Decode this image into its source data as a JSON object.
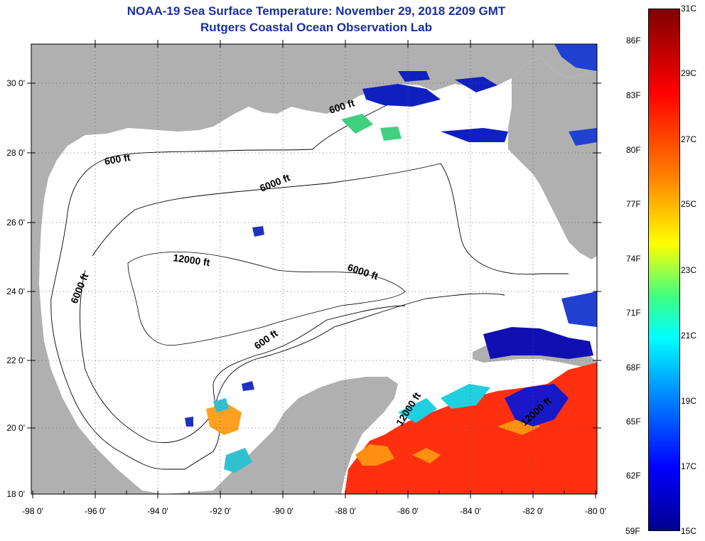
{
  "title": "NOAA-19 Sea Surface Temperature:  November 29, 2018 2209 GMT",
  "subtitle": "Rutgers Coastal Ocean Observation Lab",
  "longitude_labels": [
    "-98 0'",
    "-96 0'",
    "-94 0'",
    "-92 0'",
    "-90 0'",
    "-88 0'",
    "-86 0'",
    "-84 0'",
    "-82 0'",
    "-80 0'"
  ],
  "latitude_labels": [
    "30 0'",
    "28 0'",
    "26 0'",
    "24 0'",
    "22 0'",
    "20 0'",
    "18 0'"
  ],
  "contour_labels": [
    "600 ft",
    "600 ft",
    "6000 ft",
    "12000 ft",
    "6000 ft",
    "6000 ft",
    "600 ft",
    "12000 ft",
    "12000 ft"
  ],
  "colorbar": {
    "fahrenheit": [
      "86F",
      "83F",
      "80F",
      "77F",
      "74F",
      "71F",
      "68F",
      "65F",
      "62F",
      "59F"
    ],
    "celsius": [
      "31C",
      "29C",
      "27C",
      "25C",
      "23C",
      "21C",
      "19C",
      "17C",
      "15C"
    ]
  },
  "colors": {
    "land": "#b0b0b0",
    "ocean": "#ffffff",
    "title": "#1a2fa0"
  }
}
